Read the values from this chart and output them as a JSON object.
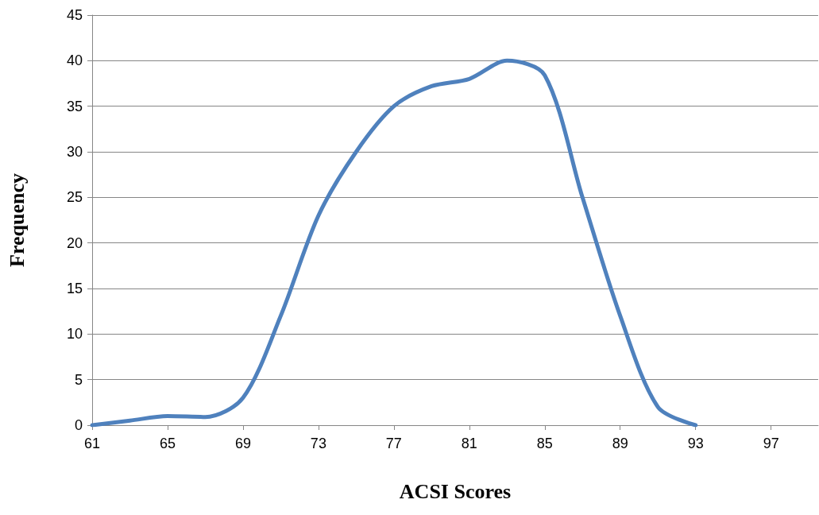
{
  "chart_data": {
    "type": "line",
    "xlabel": "ACSI Scores",
    "ylabel": "Frequency",
    "x": [
      61,
      63,
      65,
      67,
      69,
      71,
      73,
      75,
      77,
      79,
      81,
      83,
      85,
      87,
      89,
      91,
      93
    ],
    "series": [
      {
        "color": "#4f81bd",
        "values": [
          0,
          0.5,
          1,
          0.9,
          3,
          12,
          23,
          30,
          35,
          37.2,
          38,
          40,
          38.4,
          25,
          12,
          2,
          0
        ]
      }
    ],
    "xlim": [
      61,
      99.5
    ],
    "xticks": [
      61,
      65,
      69,
      73,
      77,
      81,
      85,
      89,
      93,
      97
    ],
    "ylim": [
      0,
      45
    ],
    "yticks": [
      0,
      5,
      10,
      15,
      20,
      25,
      30,
      35,
      40,
      45
    ],
    "grid": "y",
    "marker": "none",
    "line_style": "solid"
  }
}
